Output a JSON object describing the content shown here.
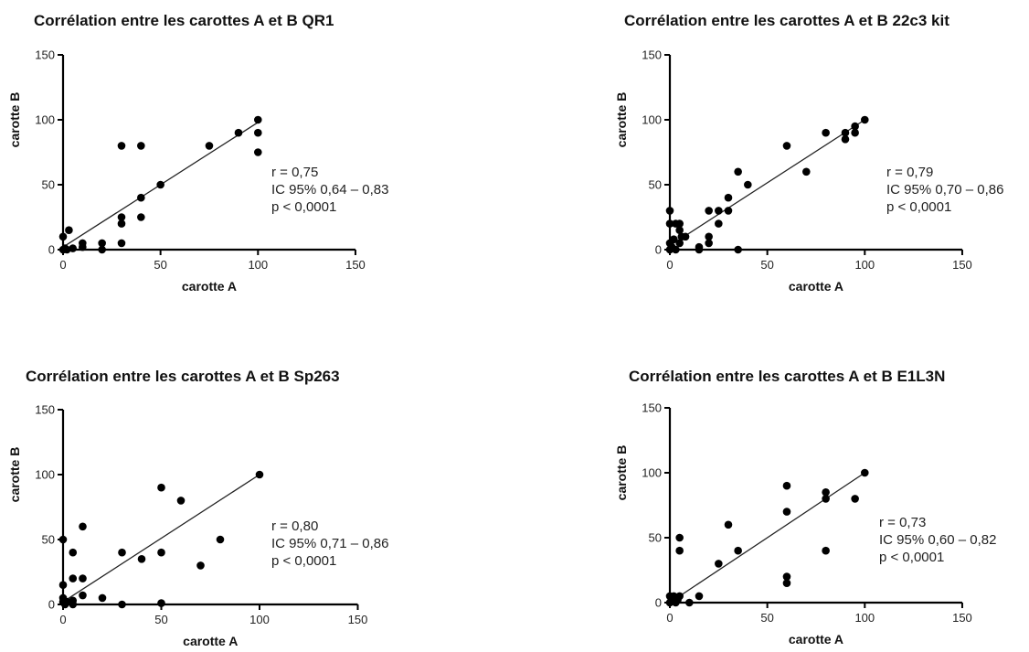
{
  "chart_data": [
    {
      "type": "scatter",
      "title": "Corrélation entre les carottes A et B QR1",
      "xlabel": "carotte A",
      "ylabel": "carotte B",
      "xlim": [
        0,
        150
      ],
      "ylim": [
        0,
        150
      ],
      "xticks": [
        "0",
        "50",
        "100",
        "150"
      ],
      "yticks": [
        "0",
        "50",
        "100",
        "150"
      ],
      "points": [
        [
          0,
          0
        ],
        [
          1,
          1
        ],
        [
          2,
          0
        ],
        [
          3,
          15
        ],
        [
          0,
          10
        ],
        [
          5,
          1
        ],
        [
          10,
          2
        ],
        [
          10,
          5
        ],
        [
          20,
          0
        ],
        [
          20,
          5
        ],
        [
          30,
          5
        ],
        [
          30,
          20
        ],
        [
          30,
          25
        ],
        [
          30,
          80
        ],
        [
          40,
          80
        ],
        [
          40,
          25
        ],
        [
          40,
          40
        ],
        [
          50,
          50
        ],
        [
          75,
          80
        ],
        [
          90,
          90
        ],
        [
          100,
          100
        ],
        [
          100,
          90
        ],
        [
          100,
          75
        ]
      ],
      "fit_line": [
        [
          0,
          2
        ],
        [
          100,
          98
        ]
      ],
      "stats": [
        "r = 0,75",
        "IC 95% 0,64 – 0,83",
        "p < 0,0001"
      ]
    },
    {
      "type": "scatter",
      "title": "Corrélation entre les carottes A et B 22c3 kit",
      "xlabel": "carotte A",
      "ylabel": "carotte B",
      "xlim": [
        0,
        150
      ],
      "ylim": [
        0,
        150
      ],
      "xticks": [
        "0",
        "50",
        "100",
        "150"
      ],
      "yticks": [
        "0",
        "50",
        "100",
        "150"
      ],
      "points": [
        [
          0,
          30
        ],
        [
          0,
          20
        ],
        [
          0,
          5
        ],
        [
          0,
          0
        ],
        [
          1,
          2
        ],
        [
          2,
          8
        ],
        [
          3,
          20
        ],
        [
          3,
          0
        ],
        [
          5,
          5
        ],
        [
          5,
          20
        ],
        [
          5,
          15
        ],
        [
          6,
          10
        ],
        [
          8,
          10
        ],
        [
          15,
          0
        ],
        [
          15,
          2
        ],
        [
          20,
          5
        ],
        [
          20,
          10
        ],
        [
          20,
          30
        ],
        [
          25,
          20
        ],
        [
          25,
          30
        ],
        [
          30,
          30
        ],
        [
          30,
          40
        ],
        [
          35,
          60
        ],
        [
          35,
          0
        ],
        [
          40,
          50
        ],
        [
          60,
          80
        ],
        [
          70,
          60
        ],
        [
          80,
          90
        ],
        [
          90,
          90
        ],
        [
          90,
          85
        ],
        [
          95,
          90
        ],
        [
          95,
          95
        ],
        [
          100,
          100
        ]
      ],
      "fit_line": [
        [
          0,
          3
        ],
        [
          100,
          100
        ]
      ],
      "stats": [
        "r = 0,79",
        "IC 95% 0,70 – 0,86",
        "p < 0,0001"
      ]
    },
    {
      "type": "scatter",
      "title": "Corrélation entre les carottes A et B Sp263",
      "xlabel": "carotte A",
      "ylabel": "carotte B",
      "xlim": [
        0,
        150
      ],
      "ylim": [
        0,
        150
      ],
      "xticks": [
        "0",
        "50",
        "100",
        "150"
      ],
      "yticks": [
        "0",
        "50",
        "100",
        "150"
      ],
      "points": [
        [
          0,
          50
        ],
        [
          0,
          15
        ],
        [
          0,
          5
        ],
        [
          0,
          2
        ],
        [
          1,
          0
        ],
        [
          2,
          2
        ],
        [
          5,
          0
        ],
        [
          5,
          3
        ],
        [
          5,
          40
        ],
        [
          5,
          20
        ],
        [
          10,
          20
        ],
        [
          10,
          60
        ],
        [
          10,
          7
        ],
        [
          20,
          5
        ],
        [
          30,
          0
        ],
        [
          30,
          40
        ],
        [
          40,
          35
        ],
        [
          50,
          90
        ],
        [
          50,
          40
        ],
        [
          50,
          1
        ],
        [
          60,
          80
        ],
        [
          70,
          30
        ],
        [
          80,
          50
        ],
        [
          100,
          100
        ]
      ],
      "fit_line": [
        [
          0,
          2
        ],
        [
          100,
          100
        ]
      ],
      "stats": [
        "r = 0,80",
        "IC 95% 0,71 – 0,86",
        "p < 0,0001"
      ]
    },
    {
      "type": "scatter",
      "title": "Corrélation entre les carottes A et B E1L3N",
      "xlabel": "carotte A",
      "ylabel": "carotte B",
      "xlim": [
        0,
        150
      ],
      "ylim": [
        0,
        150
      ],
      "xticks": [
        "0",
        "50",
        "100",
        "150"
      ],
      "yticks": [
        "0",
        "50",
        "100",
        "150"
      ],
      "points": [
        [
          0,
          5
        ],
        [
          0,
          0
        ],
        [
          1,
          2
        ],
        [
          2,
          5
        ],
        [
          3,
          0
        ],
        [
          4,
          2
        ],
        [
          5,
          50
        ],
        [
          5,
          40
        ],
        [
          5,
          5
        ],
        [
          10,
          0
        ],
        [
          15,
          5
        ],
        [
          25,
          30
        ],
        [
          30,
          60
        ],
        [
          35,
          40
        ],
        [
          60,
          90
        ],
        [
          60,
          70
        ],
        [
          60,
          20
        ],
        [
          60,
          15
        ],
        [
          80,
          85
        ],
        [
          80,
          80
        ],
        [
          80,
          40
        ],
        [
          95,
          80
        ],
        [
          100,
          100
        ]
      ],
      "fit_line": [
        [
          0,
          0
        ],
        [
          100,
          100
        ]
      ],
      "stats": [
        "r = 0,73",
        "IC 95% 0,60 – 0,82",
        "p < 0,0001"
      ]
    }
  ]
}
